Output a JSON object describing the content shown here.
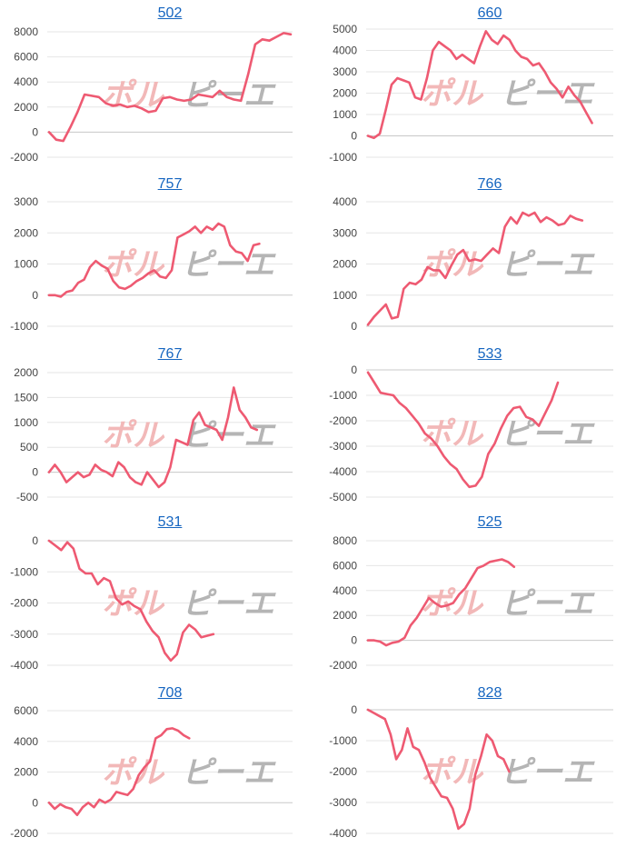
{
  "page": {
    "watermark_left": "ポル",
    "watermark_right": "ピーエ"
  },
  "chart_data": [
    {
      "type": "line",
      "title": "502",
      "ylim": [
        -2000,
        8000
      ],
      "yticks": [
        -2000,
        0,
        2000,
        4000,
        6000,
        8000
      ],
      "line_color": "#ee5a72",
      "values": [
        0,
        -600,
        -700,
        400,
        1600,
        3000,
        2900,
        2800,
        2300,
        2100,
        2200,
        2000,
        2100,
        1900,
        1600,
        1700,
        2700,
        2800,
        2600,
        2500,
        2600,
        3000,
        2900,
        2800,
        3300,
        2800,
        2600,
        2500,
        4600,
        7000,
        7400,
        7300,
        7600,
        7900,
        7800
      ]
    },
    {
      "type": "line",
      "title": "660",
      "ylim": [
        -1000,
        5000
      ],
      "yticks": [
        -1000,
        0,
        1000,
        2000,
        3000,
        4000,
        5000
      ],
      "line_color": "#ee5a72",
      "values": [
        0,
        -100,
        100,
        1200,
        2400,
        2700,
        2600,
        2500,
        1800,
        1700,
        2700,
        4000,
        4400,
        4200,
        4000,
        3600,
        3800,
        3600,
        3400,
        4200,
        4900,
        4500,
        4300,
        4700,
        4500,
        4000,
        3700,
        3600,
        3300,
        3400,
        3000,
        2500,
        2200,
        1800,
        2300,
        1900,
        1600,
        1100,
        600
      ]
    },
    {
      "type": "line",
      "title": "757",
      "ylim": [
        -1000,
        3000
      ],
      "yticks": [
        -1000,
        0,
        1000,
        2000,
        3000
      ],
      "line_color": "#ee5a72",
      "values": [
        0,
        0,
        -50,
        100,
        150,
        400,
        500,
        900,
        1100,
        950,
        850,
        450,
        250,
        200,
        300,
        450,
        550,
        700,
        800,
        600,
        550,
        800,
        1850,
        1950,
        2050,
        2200,
        2000,
        2200,
        2100,
        2300,
        2200,
        1600,
        1400,
        1350,
        1100,
        1600,
        1650
      ]
    },
    {
      "type": "line",
      "title": "766",
      "ylim": [
        0,
        4000
      ],
      "yticks": [
        0,
        1000,
        2000,
        3000,
        4000
      ],
      "line_color": "#ee5a72",
      "values": [
        50,
        300,
        500,
        700,
        250,
        300,
        1200,
        1400,
        1350,
        1500,
        1900,
        1800,
        1800,
        1550,
        1950,
        2300,
        2450,
        2100,
        2150,
        2100,
        2300,
        2500,
        2350,
        3200,
        3500,
        3300,
        3650,
        3550,
        3650,
        3350,
        3500,
        3400,
        3250,
        3300,
        3550,
        3450,
        3400
      ]
    },
    {
      "type": "line",
      "title": "767",
      "ylim": [
        -500,
        2000
      ],
      "yticks": [
        -500,
        0,
        500,
        1000,
        1500,
        2000
      ],
      "line_color": "#ee5a72",
      "values": [
        0,
        150,
        0,
        -200,
        -100,
        0,
        -100,
        -50,
        150,
        50,
        0,
        -80,
        200,
        100,
        -100,
        -200,
        -250,
        0,
        -150,
        -300,
        -200,
        100,
        650,
        600,
        550,
        1050,
        1200,
        950,
        900,
        850,
        650,
        1100,
        1700,
        1250,
        1100,
        900,
        850
      ]
    },
    {
      "type": "line",
      "title": "533",
      "ylim": [
        -5000,
        0
      ],
      "yticks": [
        -5000,
        -4000,
        -3000,
        -2000,
        -1000,
        0
      ],
      "line_color": "#ee5a72",
      "values": [
        -100,
        -500,
        -900,
        -950,
        -1000,
        -1300,
        -1500,
        -1800,
        -2100,
        -2500,
        -2700,
        -3000,
        -3400,
        -3700,
        -3900,
        -4300,
        -4600,
        -4550,
        -4200,
        -3300,
        -2900,
        -2300,
        -1800,
        -1500,
        -1450,
        -1850,
        -1950,
        -2200,
        -1700,
        -1200,
        -500
      ]
    },
    {
      "type": "line",
      "title": "531",
      "ylim": [
        -4000,
        0
      ],
      "yticks": [
        -4000,
        -3000,
        -2000,
        -1000,
        0
      ],
      "line_color": "#ee5a72",
      "values": [
        0,
        -150,
        -300,
        -50,
        -250,
        -900,
        -1050,
        -1050,
        -1400,
        -1200,
        -1300,
        -1850,
        -2050,
        -1950,
        -2100,
        -2200,
        -2600,
        -2900,
        -3100,
        -3600,
        -3850,
        -3650,
        -2950,
        -2700,
        -2850,
        -3100,
        -3050,
        -3000
      ]
    },
    {
      "type": "line",
      "title": "525",
      "ylim": [
        -2000,
        8000
      ],
      "yticks": [
        -2000,
        0,
        2000,
        4000,
        6000,
        8000
      ],
      "line_color": "#ee5a72",
      "values": [
        0,
        0,
        -100,
        -400,
        -200,
        -100,
        200,
        1200,
        1800,
        2600,
        3400,
        3000,
        2700,
        2800,
        3000,
        3700,
        4200,
        5000,
        5800,
        6000,
        6300,
        6400,
        6500,
        6300,
        5900
      ]
    },
    {
      "type": "line",
      "title": "708",
      "ylim": [
        -2000,
        6000
      ],
      "yticks": [
        -2000,
        0,
        2000,
        4000,
        6000
      ],
      "line_color": "#ee5a72",
      "values": [
        0,
        -400,
        -100,
        -300,
        -400,
        -800,
        -300,
        0,
        -300,
        200,
        0,
        200,
        700,
        600,
        500,
        900,
        1800,
        2300,
        2700,
        4200,
        4400,
        4800,
        4850,
        4700,
        4400,
        4200
      ]
    },
    {
      "type": "line",
      "title": "828",
      "ylim": [
        -4000,
        0
      ],
      "yticks": [
        -4000,
        -3000,
        -2000,
        -1000,
        0
      ],
      "line_color": "#ee5a72",
      "values": [
        0,
        -100,
        -200,
        -300,
        -800,
        -1600,
        -1300,
        -600,
        -1200,
        -1300,
        -1700,
        -2200,
        -2500,
        -2800,
        -2850,
        -3200,
        -3850,
        -3700,
        -3200,
        -2100,
        -1500,
        -800,
        -1000,
        -1500,
        -1600,
        -2000
      ]
    }
  ]
}
